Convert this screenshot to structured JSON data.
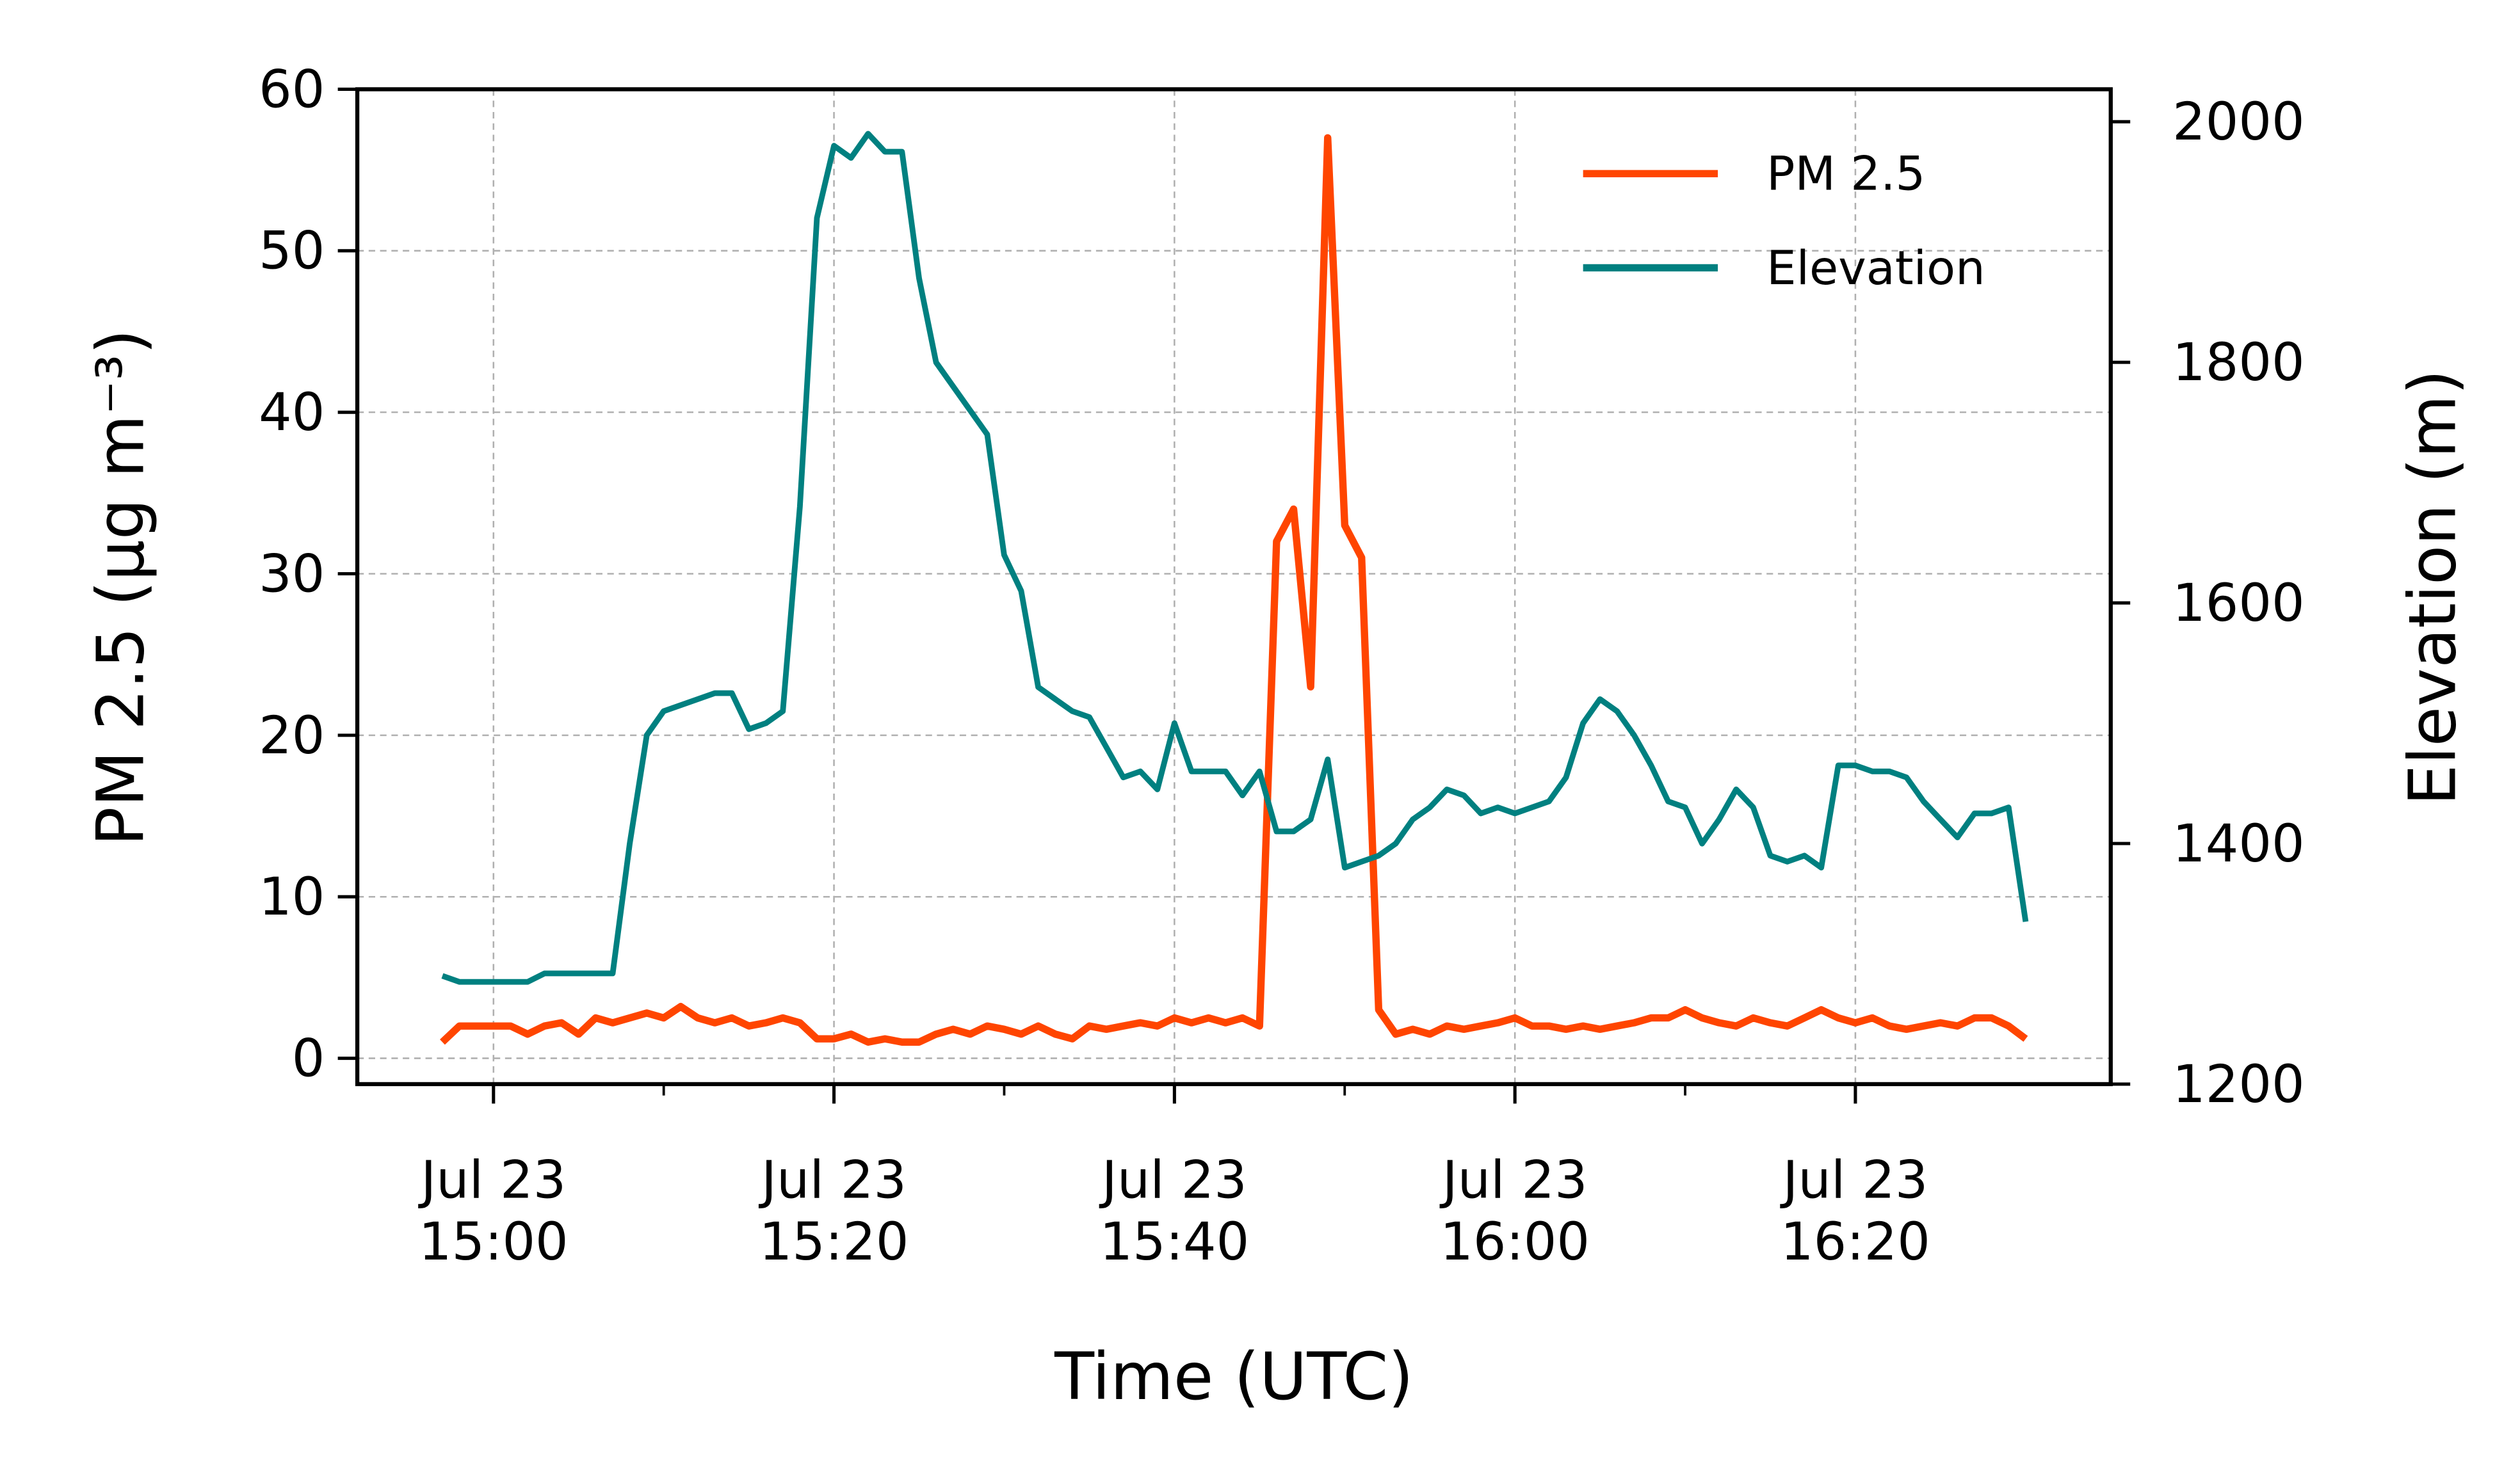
{
  "chart_data": {
    "type": "line",
    "x_label": "Time (UTC)",
    "y_label": "PM 2.5 (μg m⁻³)",
    "y2_label": "Elevation (m)",
    "x": [
      "Jul 23 14:57",
      "Jul 23 14:58",
      "Jul 23 14:59",
      "Jul 23 15:00",
      "Jul 23 15:01",
      "Jul 23 15:02",
      "Jul 23 15:03",
      "Jul 23 15:04",
      "Jul 23 15:05",
      "Jul 23 15:06",
      "Jul 23 15:07",
      "Jul 23 15:08",
      "Jul 23 15:09",
      "Jul 23 15:10",
      "Jul 23 15:11",
      "Jul 23 15:12",
      "Jul 23 15:13",
      "Jul 23 15:14",
      "Jul 23 15:15",
      "Jul 23 15:16",
      "Jul 23 15:17",
      "Jul 23 15:18",
      "Jul 23 15:19",
      "Jul 23 15:20",
      "Jul 23 15:21",
      "Jul 23 15:22",
      "Jul 23 15:23",
      "Jul 23 15:24",
      "Jul 23 15:25",
      "Jul 23 15:26",
      "Jul 23 15:27",
      "Jul 23 15:28",
      "Jul 23 15:29",
      "Jul 23 15:30",
      "Jul 23 15:31",
      "Jul 23 15:32",
      "Jul 23 15:33",
      "Jul 23 15:34",
      "Jul 23 15:35",
      "Jul 23 15:36",
      "Jul 23 15:37",
      "Jul 23 15:38",
      "Jul 23 15:39",
      "Jul 23 15:40",
      "Jul 23 15:41",
      "Jul 23 15:42",
      "Jul 23 15:43",
      "Jul 23 15:44",
      "Jul 23 15:45",
      "Jul 23 15:46",
      "Jul 23 15:47",
      "Jul 23 15:48",
      "Jul 23 15:49",
      "Jul 23 15:50",
      "Jul 23 15:51",
      "Jul 23 15:52",
      "Jul 23 15:53",
      "Jul 23 15:54",
      "Jul 23 15:55",
      "Jul 23 15:56",
      "Jul 23 15:57",
      "Jul 23 15:58",
      "Jul 23 15:59",
      "Jul 23 16:00",
      "Jul 23 16:01",
      "Jul 23 16:02",
      "Jul 23 16:03",
      "Jul 23 16:04",
      "Jul 23 16:05",
      "Jul 23 16:06",
      "Jul 23 16:07",
      "Jul 23 16:08",
      "Jul 23 16:09",
      "Jul 23 16:10",
      "Jul 23 16:11",
      "Jul 23 16:12",
      "Jul 23 16:13",
      "Jul 23 16:14",
      "Jul 23 16:15",
      "Jul 23 16:16",
      "Jul 23 16:17",
      "Jul 23 16:18",
      "Jul 23 16:19",
      "Jul 23 16:20",
      "Jul 23 16:21",
      "Jul 23 16:22",
      "Jul 23 16:23",
      "Jul 23 16:24",
      "Jul 23 16:25",
      "Jul 23 16:26",
      "Jul 23 16:27",
      "Jul 23 16:28",
      "Jul 23 16:29",
      "Jul 23 16:30"
    ],
    "series": [
      {
        "name": "PM 2.5",
        "color": "#ff4500",
        "values": [
          1,
          2,
          2,
          2,
          2,
          1.5,
          2,
          2.2,
          1.5,
          2.5,
          2.2,
          2.5,
          2.8,
          2.5,
          3.2,
          2.5,
          2.2,
          2.5,
          2,
          2.2,
          2.5,
          2.2,
          1.2,
          1.2,
          1.5,
          1,
          1.2,
          1,
          1,
          1.5,
          1.8,
          1.5,
          2,
          1.8,
          1.5,
          2,
          1.5,
          1.2,
          2,
          1.8,
          2,
          2.2,
          2,
          2.5,
          2.2,
          2.5,
          2.2,
          2.5,
          2,
          32,
          34,
          23,
          57,
          33,
          31,
          3,
          1.5,
          1.8,
          1.5,
          2,
          1.8,
          2,
          2.2,
          2.5,
          2,
          2,
          1.8,
          2,
          1.8,
          2,
          2.2,
          2.5,
          2.5,
          3,
          2.5,
          2.2,
          2,
          2.5,
          2.2,
          2,
          2.5,
          3,
          2.5,
          2.2,
          2.5,
          2,
          1.8,
          2,
          2.2,
          2,
          2.5,
          2.5,
          2,
          1.2
        ]
      },
      {
        "name": "Elevation",
        "color": "#008080",
        "axis": "y2",
        "values": [
          1290,
          1285,
          1285,
          1285,
          1285,
          1285,
          1292,
          1292,
          1292,
          1292,
          1292,
          1400,
          1490,
          1510,
          1515,
          1520,
          1525,
          1525,
          1495,
          1500,
          1510,
          1680,
          1920,
          1980,
          1970,
          1990,
          1975,
          1975,
          1870,
          1800,
          1780,
          1760,
          1740,
          1640,
          1610,
          1530,
          1520,
          1510,
          1505,
          1480,
          1455,
          1460,
          1445,
          1500,
          1460,
          1460,
          1460,
          1440,
          1460,
          1410,
          1410,
          1420,
          1470,
          1380,
          1385,
          1390,
          1400,
          1420,
          1430,
          1445,
          1440,
          1425,
          1430,
          1425,
          1430,
          1435,
          1455,
          1500,
          1520,
          1510,
          1490,
          1465,
          1435,
          1430,
          1400,
          1420,
          1445,
          1430,
          1390,
          1385,
          1390,
          1380,
          1465,
          1465,
          1460,
          1460,
          1455,
          1435,
          1420,
          1405,
          1425,
          1425,
          1430,
          1335
        ]
      }
    ],
    "xlim": [
      "Jul 23 14:52",
      "Jul 23 16:35"
    ],
    "xticks": [
      {
        "value": "Jul 23 15:00",
        "label": "Jul 23\n15:00"
      },
      {
        "value": "Jul 23 15:20",
        "label": "Jul 23\n15:20"
      },
      {
        "value": "Jul 23 15:40",
        "label": "Jul 23\n15:40"
      },
      {
        "value": "Jul 23 16:00",
        "label": "Jul 23\n16:00"
      },
      {
        "value": "Jul 23 16:20",
        "label": "Jul 23\n16:20"
      }
    ],
    "ylim": [
      -1.6,
      60
    ],
    "yticks": [
      0,
      10,
      20,
      30,
      40,
      50,
      60
    ],
    "y2lim": [
      1200,
      2027
    ],
    "y2ticks": [
      1200,
      1400,
      1600,
      1800,
      2000
    ],
    "grid": true,
    "legend": "upper right"
  }
}
